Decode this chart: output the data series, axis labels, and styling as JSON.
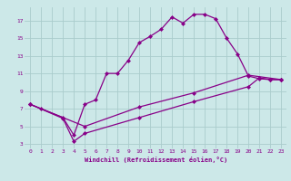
{
  "background_color": "#cce8e8",
  "grid_color": "#aacccc",
  "line_color": "#880088",
  "marker": "D",
  "marker_size": 2.0,
  "line_width": 0.9,
  "xlabel": "Windchill (Refroidissement éolien,°C)",
  "xlim": [
    -0.5,
    23.5
  ],
  "ylim": [
    2.5,
    18.5
  ],
  "yticks": [
    3,
    5,
    7,
    9,
    11,
    13,
    15,
    17
  ],
  "xticks": [
    0,
    1,
    2,
    3,
    4,
    5,
    6,
    7,
    8,
    9,
    10,
    11,
    12,
    13,
    14,
    15,
    16,
    17,
    18,
    19,
    20,
    21,
    22,
    23
  ],
  "series": [
    {
      "x": [
        0,
        1,
        3,
        4,
        5,
        6,
        7,
        8,
        9,
        10,
        11,
        12,
        13,
        14,
        15,
        16,
        17,
        18,
        19,
        20,
        21,
        22,
        23
      ],
      "y": [
        7.5,
        7.0,
        6.0,
        4.0,
        7.5,
        8.0,
        11.0,
        11.0,
        12.5,
        14.5,
        15.2,
        16.0,
        17.4,
        16.7,
        17.7,
        17.7,
        17.2,
        15.0,
        13.2,
        10.7,
        10.4,
        10.3,
        10.3
      ]
    },
    {
      "x": [
        0,
        3,
        4,
        5,
        10,
        15,
        20,
        21,
        22,
        23
      ],
      "y": [
        7.5,
        5.9,
        3.3,
        4.2,
        6.0,
        7.8,
        9.5,
        10.5,
        10.3,
        10.3
      ]
    },
    {
      "x": [
        0,
        5,
        10,
        15,
        20,
        23
      ],
      "y": [
        7.5,
        5.0,
        7.2,
        8.8,
        10.8,
        10.3
      ]
    }
  ]
}
